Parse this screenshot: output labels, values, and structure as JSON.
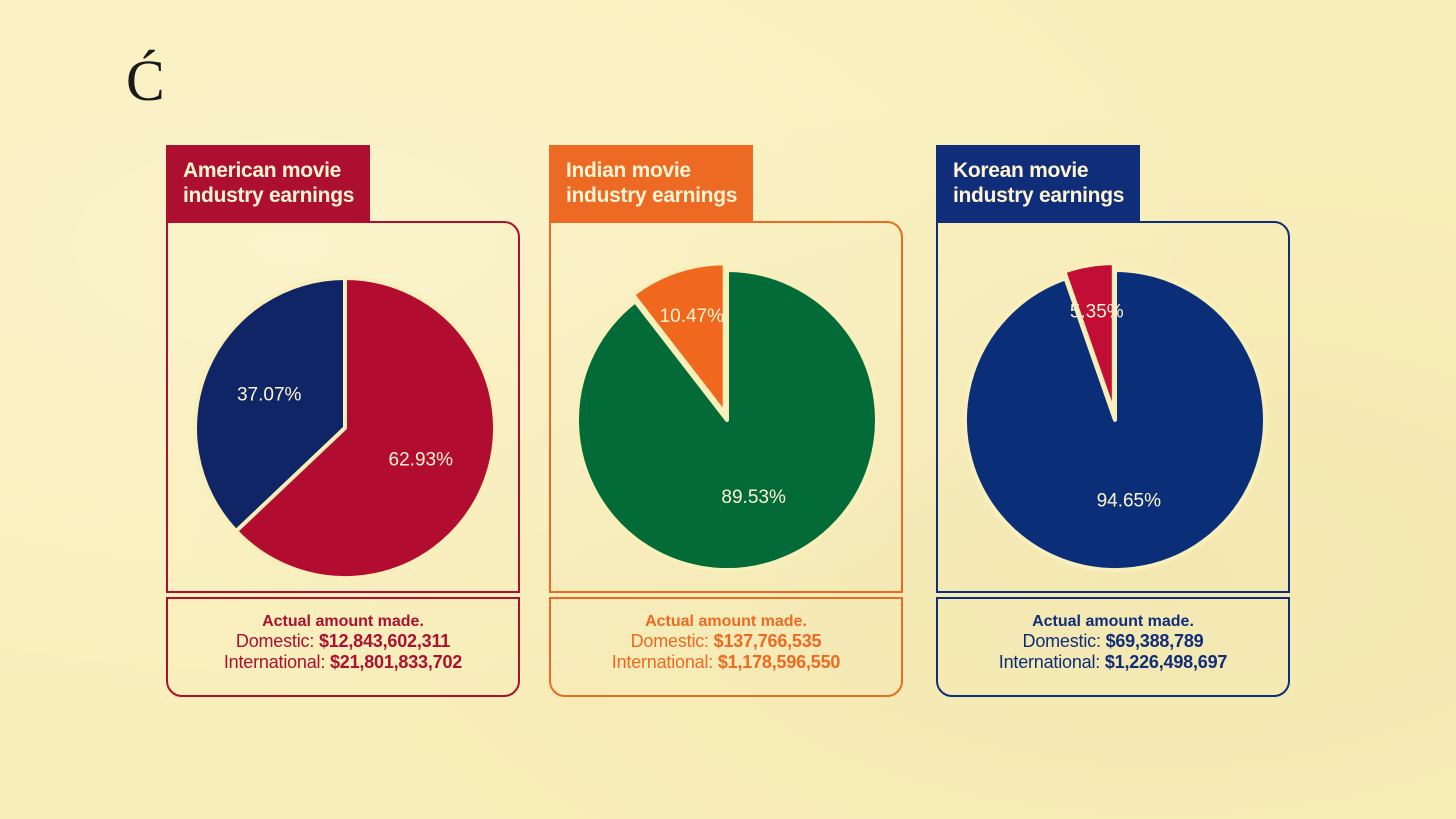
{
  "logo": {
    "glyph": "Ć"
  },
  "panels": [
    {
      "title_line1": "American movie",
      "title_line2": "industry earnings",
      "accent": "#ad0f31",
      "amount_title": "Actual amount made.",
      "domestic_label": "Domestic:",
      "domestic_value": "$12,843,602,311",
      "international_label": "International:",
      "international_value": "$21,801,833,702"
    },
    {
      "title_line1": "Indian movie",
      "title_line2": "industry earnings",
      "accent": "#ec6a23",
      "amount_title": "Actual amount made.",
      "domestic_label": "Domestic:",
      "domestic_value": "$137,766,535",
      "international_label": "International:",
      "international_value": "$1,178,596,550"
    },
    {
      "title_line1": "Korean movie",
      "title_line2": "industry earnings",
      "accent": "#0f2d78",
      "amount_title": "Actual amount made.",
      "domestic_label": "Domestic:",
      "domestic_value": "$69,388,789",
      "international_label": "International:",
      "international_value": "$1,226,498,697"
    }
  ],
  "chart_data": [
    {
      "type": "pie",
      "title": "American movie industry earnings",
      "slices": [
        {
          "name": "Domestic",
          "value": 37.07,
          "label": "37.07%",
          "color": "#0f2565",
          "exploded": false
        },
        {
          "name": "International",
          "value": 62.93,
          "label": "62.93%",
          "color": "#b20d30",
          "exploded": false
        }
      ]
    },
    {
      "type": "pie",
      "title": "Indian movie industry earnings",
      "slices": [
        {
          "name": "Domestic",
          "value": 10.47,
          "label": "10.47%",
          "color": "#f0681e",
          "exploded": true
        },
        {
          "name": "International",
          "value": 89.53,
          "label": "89.53%",
          "color": "#036b37",
          "exploded": false
        }
      ]
    },
    {
      "type": "pie",
      "title": "Korean movie industry earnings",
      "slices": [
        {
          "name": "Domestic",
          "value": 5.35,
          "label": "5.35%",
          "color": "#c20d34",
          "exploded": true
        },
        {
          "name": "International",
          "value": 94.65,
          "label": "94.65%",
          "color": "#0a2f78",
          "exploded": false
        }
      ]
    }
  ]
}
